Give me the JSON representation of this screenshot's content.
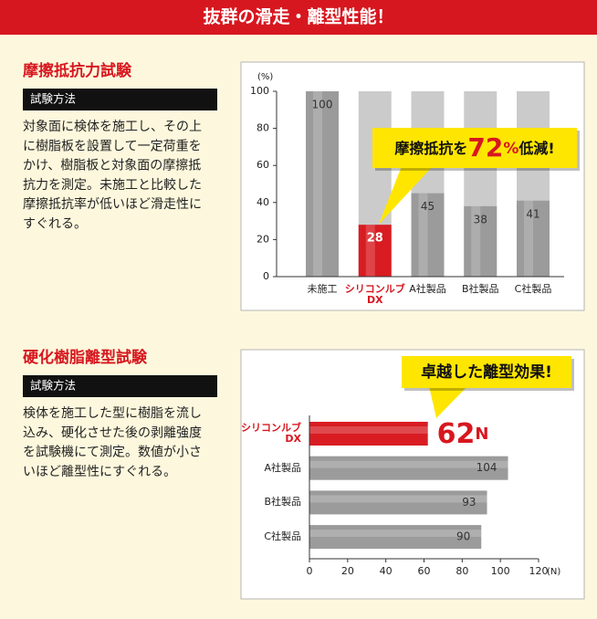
{
  "header": {
    "title": "抜群の滑走・離型性能！"
  },
  "sections": [
    {
      "heading": "摩擦抵抗力試験",
      "method_label": "試験方法",
      "lines": [
        "対象面に検体を施工し、その上",
        "に樹脂板を設置して一定荷重を",
        "かけ、樹脂板と対象面の摩擦抵",
        "抗力を測定。未施工と比較した",
        "摩擦抵抗率が低いほど滑走性に",
        "すぐれる。"
      ]
    },
    {
      "heading": "硬化樹脂離型試験",
      "method_label": "試験方法",
      "lines": [
        "検体を施工した型に樹脂を流し",
        "込み、硬化させた後の剥離強度",
        "を試験機にて測定。数値が小さ",
        "いほど離型性にすぐれる。"
      ]
    }
  ],
  "chart_data": [
    {
      "type": "bar",
      "ylabel": "(%)",
      "categories": [
        "未施工",
        "シリコンルブ\nDX",
        "A社製品",
        "B社製品",
        "C社製品"
      ],
      "values": [
        100,
        28,
        45,
        38,
        41
      ],
      "colors": [
        "#9b9b9b",
        "#d81c22",
        "#9b9b9b",
        "#9b9b9b",
        "#9b9b9b"
      ],
      "highlight_index": 1,
      "ylim": [
        0,
        100
      ],
      "yticks": [
        0,
        20,
        40,
        60,
        80,
        100
      ],
      "callout": {
        "before": "摩擦抵抗を",
        "number": 72,
        "unit": "%",
        "after": "低減!"
      }
    },
    {
      "type": "barh",
      "xlabel": "(N)",
      "categories": [
        "シリコンルブ\nDX",
        "A社製品",
        "B社製品",
        "C社製品"
      ],
      "values": [
        62,
        104,
        93,
        90
      ],
      "colors": [
        "#d81c22",
        "#9b9b9b",
        "#9b9b9b",
        "#9b9b9b"
      ],
      "highlight_index": 0,
      "highlight_unit": "N",
      "xlim": [
        0,
        120
      ],
      "xticks": [
        0,
        20,
        40,
        60,
        80,
        100,
        120
      ],
      "callout": {
        "text": "卓越した離型効果!"
      }
    }
  ]
}
